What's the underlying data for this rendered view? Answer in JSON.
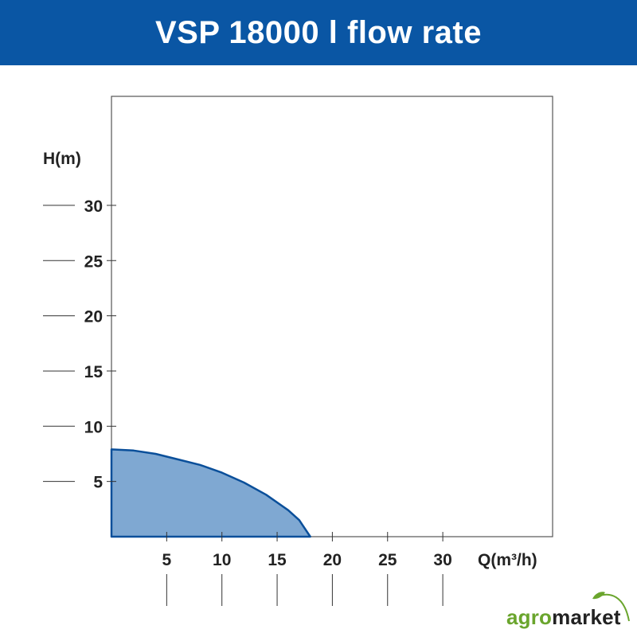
{
  "header": {
    "title": "VSP 18000 l flow rate"
  },
  "colors": {
    "header_bg": "#0a56a4",
    "curve_fill": "#7fa8d2",
    "curve_stroke": "#0a4f9a",
    "axis": "#555555",
    "logo_green": "#6aa52d",
    "logo_dark": "#222222"
  },
  "chart_data": {
    "type": "area",
    "title": "",
    "xlabel": "Q(m³/h)",
    "ylabel": "H(m)",
    "xlim": [
      0,
      40
    ],
    "ylim": [
      0,
      40
    ],
    "xticks": [
      5,
      10,
      15,
      20,
      25,
      30
    ],
    "yticks": [
      5,
      10,
      15,
      20,
      25,
      30
    ],
    "grid": false,
    "series": [
      {
        "x": [
          0,
          2,
          4,
          6,
          8,
          10,
          12,
          14,
          16,
          17,
          18
        ],
        "y": [
          7.9,
          7.8,
          7.5,
          7.0,
          6.5,
          5.8,
          4.9,
          3.8,
          2.4,
          1.5,
          0
        ]
      }
    ]
  },
  "logo": {
    "part1": "agro",
    "part2": "market"
  }
}
